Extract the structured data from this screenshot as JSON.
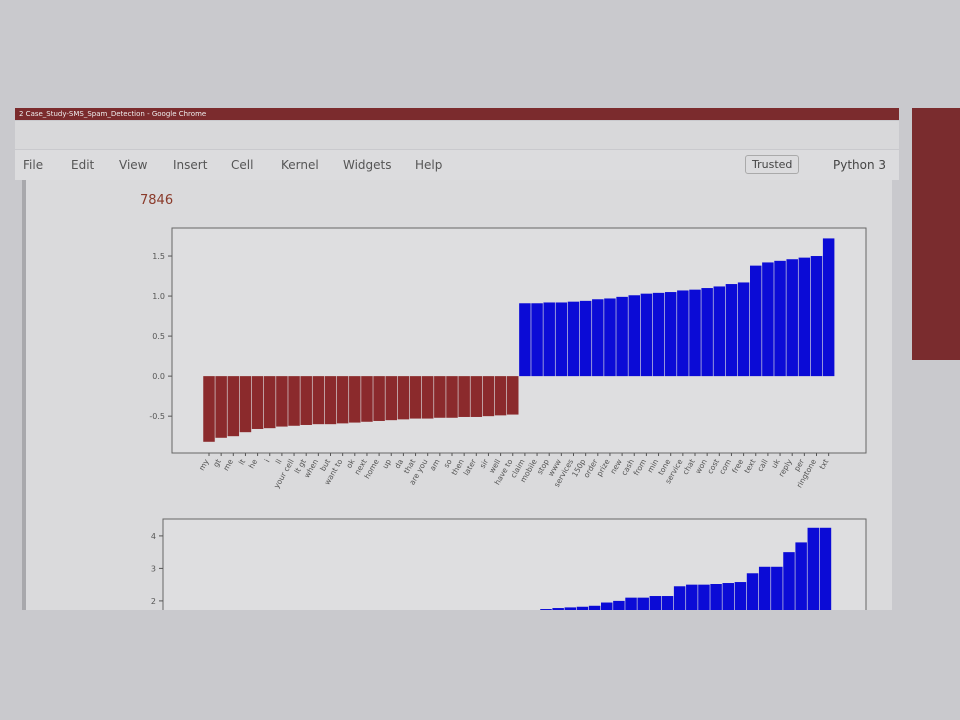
{
  "window_title": "2 Case_Study-SMS_Spam_Detection - Google Chrome",
  "menu": [
    "File",
    "Edit",
    "View",
    "Insert",
    "Cell",
    "Kernel",
    "Widgets",
    "Help"
  ],
  "trusted": "Trusted",
  "kernel": "Python 3",
  "output_text": "7846",
  "chart_data": [
    {
      "type": "bar",
      "categories": [
        "my",
        "gt",
        "me",
        "lt",
        "he",
        "i",
        "ll",
        "your cell",
        "lt gt",
        "when",
        "but",
        "want to",
        "ok",
        "next",
        "home",
        "up",
        "da",
        "that",
        "are you",
        "am",
        "so",
        "then",
        "later",
        "sir",
        "well",
        "have to",
        "claim",
        "mobile",
        "stop",
        "www",
        "services",
        "150p",
        "order",
        "prize",
        "new",
        "cash",
        "from",
        "min",
        "tone",
        "service",
        "chat",
        "won",
        "cost",
        "com",
        "free",
        "text",
        "call",
        "uk",
        "reply",
        "per",
        "ringtone",
        "txt"
      ],
      "values": [
        -0.82,
        -0.77,
        -0.75,
        -0.7,
        -0.66,
        -0.65,
        -0.63,
        -0.62,
        -0.61,
        -0.6,
        -0.6,
        -0.59,
        -0.58,
        -0.57,
        -0.56,
        -0.55,
        -0.54,
        -0.53,
        -0.53,
        -0.52,
        -0.52,
        -0.51,
        -0.51,
        -0.5,
        -0.49,
        -0.48,
        0.91,
        0.91,
        0.92,
        0.92,
        0.93,
        0.94,
        0.96,
        0.97,
        0.99,
        1.01,
        1.03,
        1.04,
        1.05,
        1.07,
        1.08,
        1.1,
        1.12,
        1.15,
        1.17,
        1.38,
        1.42,
        1.44,
        1.46,
        1.48,
        1.5,
        1.72
      ],
      "color_negative": "#8b2a2c",
      "color_positive": "#0b0bd6",
      "ylim": [
        -0.96,
        1.85
      ],
      "yticks": [
        -0.5,
        {
          "value": 0,
          "label": "0.0"
        },
        0.5,
        {
          "value": 1,
          "label": "1.0"
        },
        1.5
      ]
    },
    {
      "type": "bar",
      "categories": [
        null,
        null,
        null,
        null,
        null,
        null,
        null,
        null,
        null,
        null,
        null,
        null,
        null,
        null,
        null,
        null,
        null,
        null,
        null,
        null,
        null,
        null,
        null,
        null
      ],
      "values": [
        1.75,
        1.78,
        1.8,
        1.82,
        1.85,
        1.95,
        2.0,
        2.1,
        2.1,
        2.15,
        2.15,
        2.45,
        2.5,
        2.5,
        2.52,
        2.55,
        2.58,
        2.85,
        3.05,
        3.05,
        3.5,
        3.8,
        4.25,
        4.25
      ],
      "color_negative": "#8b2a2c",
      "color_positive": "#0b0bd6",
      "ylim": [
        0,
        4.52
      ],
      "yticks": [
        2,
        3,
        4
      ]
    }
  ]
}
